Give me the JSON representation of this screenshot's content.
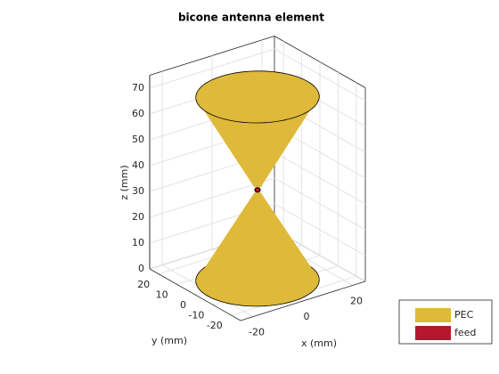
{
  "chart_data": {
    "type": "bicone3d",
    "title": "bicone antenna element",
    "xlabel": "x (mm)",
    "ylabel": "y (mm)",
    "zlabel": "z (mm)",
    "xlim": [
      -25,
      25
    ],
    "ylim": [
      -25,
      25
    ],
    "zlim": [
      0,
      75
    ],
    "xticks": [
      -20,
      0,
      20
    ],
    "yticks": [
      -20,
      -10,
      0,
      10,
      20
    ],
    "zticks": [
      0,
      10,
      20,
      30,
      40,
      50,
      60,
      70
    ],
    "grid": true,
    "series": [
      {
        "name": "PEC",
        "color": "#dfb93a",
        "radius": 20,
        "z": [
          -2,
          32,
          34,
          69
        ]
      },
      {
        "name": "feed",
        "color": "#b5182e"
      }
    ],
    "legend": "lower right"
  }
}
